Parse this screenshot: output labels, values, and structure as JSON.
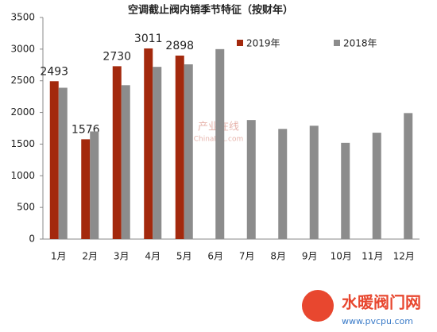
{
  "chart_data": {
    "type": "bar",
    "title": "空调截止阀内销季节特征（按财年）",
    "categories": [
      "1月",
      "2月",
      "3月",
      "4月",
      "5月",
      "6月",
      "7月",
      "8月",
      "9月",
      "10月",
      "11月",
      "12月"
    ],
    "series": [
      {
        "name": "2019年",
        "color": "#a3290d",
        "data_labels": true,
        "values": [
          2493,
          1576,
          2730,
          3011,
          2898,
          null,
          null,
          null,
          null,
          null,
          null,
          null
        ]
      },
      {
        "name": "2018年",
        "color": "#8c8c8c",
        "data_labels": false,
        "values": [
          2390,
          1700,
          2430,
          2720,
          2760,
          3000,
          1880,
          1740,
          1790,
          1520,
          1680,
          1990
        ]
      }
    ],
    "ylim": [
      0,
      3500
    ],
    "yticks": [
      0,
      500,
      1000,
      1500,
      2000,
      2500,
      3000,
      3500
    ],
    "grid": false,
    "watermark": {
      "center": "产业在线",
      "center_sub": "ChinaIOL.com",
      "logo": "水暖阀门网",
      "logo_url": "www.pvcpu.com"
    }
  }
}
